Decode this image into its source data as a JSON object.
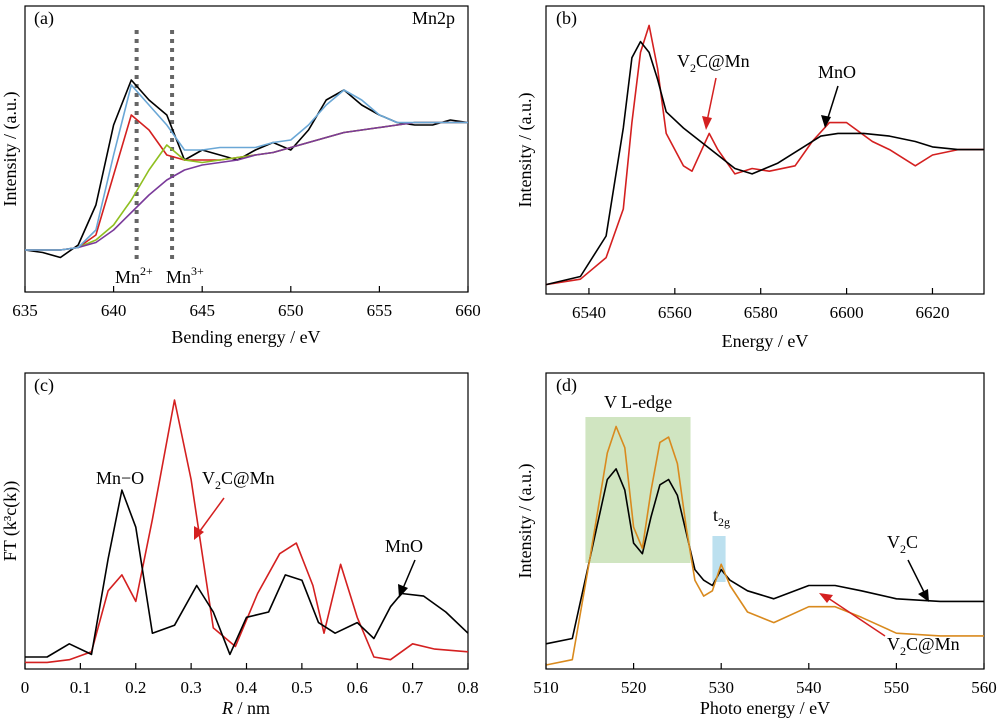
{
  "colors": {
    "black": "#000000",
    "red": "#d42020",
    "green": "#8fbf20",
    "blue": "#3a5fb0",
    "purple": "#7a3a9a",
    "lightblue": "#6aa7d6",
    "orange": "#d98a1e",
    "green_box": "#a9d08e",
    "blue_box": "#9fd3e8",
    "dotted": "#666666"
  },
  "chart_data": [
    {
      "panel": "(a)",
      "type": "line",
      "title": "Mn2p",
      "xlabel": "Bending energy / eV",
      "ylabel": "Intensity / (a.u.)",
      "xlim": [
        635,
        660
      ],
      "ylim": [
        0,
        1
      ],
      "xticks": [
        635,
        640,
        645,
        650,
        655,
        660
      ],
      "yticks_shown": false,
      "annotations": [
        "Mn",
        "2+",
        "Mn",
        "3+"
      ],
      "reference_lines_x": [
        641.3,
        643.3
      ],
      "series": [
        {
          "x": [
            635,
            636,
            637,
            638,
            639,
            640,
            641,
            642,
            643,
            644,
            645,
            646,
            647,
            648,
            649,
            650,
            651,
            652,
            653,
            654,
            655,
            656,
            657,
            658,
            659,
            660
          ],
          "y": [
            0.12,
            0.11,
            0.09,
            0.14,
            0.3,
            0.62,
            0.8,
            0.72,
            0.66,
            0.48,
            0.52,
            0.5,
            0.48,
            0.52,
            0.55,
            0.52,
            0.6,
            0.72,
            0.76,
            0.7,
            0.66,
            0.63,
            0.62,
            0.62,
            0.64,
            0.63
          ]
        },
        {
          "x": [
            635,
            636,
            637,
            638,
            639,
            640,
            641,
            642,
            643,
            644,
            645,
            646,
            647,
            648,
            649,
            650,
            651,
            652,
            653,
            654,
            655,
            656,
            657,
            658,
            659,
            660
          ],
          "y": [
            0.12,
            0.12,
            0.12,
            0.13,
            0.18,
            0.42,
            0.66,
            0.6,
            0.5,
            0.48,
            0.48,
            0.48,
            0.49,
            0.5,
            0.51,
            0.53,
            0.55,
            0.57,
            0.59,
            0.6,
            0.61,
            0.62,
            0.63,
            0.63,
            0.63,
            0.63
          ]
        },
        {
          "x": [
            635,
            636,
            637,
            638,
            639,
            640,
            641,
            642,
            643,
            644,
            645,
            646,
            647,
            648,
            649,
            650,
            651,
            652,
            653,
            654,
            655,
            656,
            657,
            658,
            659,
            660
          ],
          "y": [
            0.12,
            0.12,
            0.12,
            0.13,
            0.16,
            0.22,
            0.32,
            0.44,
            0.54,
            0.48,
            0.47,
            0.48,
            0.49,
            0.5,
            0.51,
            0.53,
            0.55,
            0.57,
            0.59,
            0.6,
            0.61,
            0.62,
            0.63,
            0.63,
            0.63,
            0.63
          ]
        },
        {
          "x": [
            635,
            636,
            637,
            638,
            639,
            640,
            641,
            642,
            643,
            644,
            645,
            646,
            647,
            648,
            649,
            650,
            651,
            652,
            653,
            654,
            655,
            656,
            657,
            658,
            659,
            660
          ],
          "y": [
            0.12,
            0.12,
            0.12,
            0.13,
            0.15,
            0.2,
            0.27,
            0.34,
            0.4,
            0.44,
            0.46,
            0.47,
            0.48,
            0.5,
            0.51,
            0.53,
            0.55,
            0.57,
            0.59,
            0.6,
            0.61,
            0.62,
            0.63,
            0.63,
            0.63,
            0.63
          ]
        },
        {
          "x": [
            635,
            636,
            637,
            638,
            639,
            640,
            641,
            642,
            643,
            644,
            645,
            646,
            647,
            648,
            649,
            650,
            651,
            652,
            653,
            654,
            655,
            656,
            657,
            658,
            659,
            660
          ],
          "y": [
            0.12,
            0.12,
            0.12,
            0.13,
            0.2,
            0.5,
            0.78,
            0.7,
            0.62,
            0.52,
            0.52,
            0.53,
            0.53,
            0.53,
            0.55,
            0.56,
            0.62,
            0.7,
            0.76,
            0.72,
            0.66,
            0.63,
            0.63,
            0.63,
            0.63,
            0.63
          ]
        }
      ]
    },
    {
      "panel": "(b)",
      "type": "line",
      "xlabel": "Energy / eV",
      "ylabel": "Intensity / (a.u.)",
      "xlim": [
        6530,
        6632
      ],
      "ylim": [
        0,
        1
      ],
      "xticks": [
        6540,
        6560,
        6580,
        6600,
        6620
      ],
      "yticks_shown": false,
      "annotations": [
        "V",
        "2",
        "C@Mn",
        "MnO"
      ],
      "series": [
        {
          "name": "V2C@Mn",
          "x": [
            6530,
            6538,
            6544,
            6548,
            6550,
            6552,
            6554,
            6556,
            6558,
            6562,
            6564,
            6568,
            6570,
            6574,
            6578,
            6582,
            6588,
            6592,
            6596,
            6600,
            6606,
            6610,
            6616,
            6620,
            6626,
            6632
          ],
          "y": [
            0.02,
            0.04,
            0.12,
            0.3,
            0.62,
            0.88,
            0.98,
            0.82,
            0.58,
            0.46,
            0.44,
            0.58,
            0.52,
            0.43,
            0.45,
            0.44,
            0.46,
            0.55,
            0.62,
            0.62,
            0.55,
            0.52,
            0.46,
            0.5,
            0.52,
            0.52
          ]
        },
        {
          "name": "MnO",
          "x": [
            6530,
            6538,
            6544,
            6548,
            6550,
            6552,
            6554,
            6556,
            6558,
            6562,
            6566,
            6570,
            6574,
            6578,
            6584,
            6590,
            6594,
            6598,
            6604,
            6610,
            6616,
            6620,
            6626,
            6632
          ],
          "y": [
            0.02,
            0.05,
            0.2,
            0.6,
            0.86,
            0.92,
            0.88,
            0.78,
            0.66,
            0.6,
            0.55,
            0.5,
            0.45,
            0.43,
            0.47,
            0.53,
            0.57,
            0.58,
            0.58,
            0.57,
            0.55,
            0.53,
            0.52,
            0.52
          ]
        }
      ]
    },
    {
      "panel": "(c)",
      "type": "line",
      "xlabel": "R / nm",
      "ylabel": "FT (k³c(k))",
      "xlim": [
        0,
        0.8
      ],
      "ylim": [
        0,
        1
      ],
      "xticks": [
        0,
        0.1,
        0.2,
        0.3,
        0.4,
        0.5,
        0.6,
        0.7,
        0.8
      ],
      "yticks_shown": false,
      "annotations": [
        "Mn−O",
        "V",
        "2",
        "C@Mn",
        "MnO"
      ],
      "series": [
        {
          "name": "V2C@Mn",
          "x": [
            0,
            0.04,
            0.08,
            0.12,
            0.15,
            0.175,
            0.2,
            0.23,
            0.27,
            0.3,
            0.34,
            0.38,
            0.42,
            0.46,
            0.49,
            0.52,
            0.54,
            0.57,
            0.6,
            0.63,
            0.66,
            0.7,
            0.74,
            0.8
          ],
          "y": [
            0.01,
            0.01,
            0.02,
            0.05,
            0.28,
            0.34,
            0.24,
            0.55,
            1.0,
            0.7,
            0.14,
            0.07,
            0.27,
            0.42,
            0.46,
            0.3,
            0.12,
            0.38,
            0.18,
            0.03,
            0.02,
            0.08,
            0.06,
            0.05
          ]
        },
        {
          "name": "MnO",
          "x": [
            0,
            0.04,
            0.08,
            0.12,
            0.15,
            0.175,
            0.2,
            0.23,
            0.27,
            0.31,
            0.34,
            0.37,
            0.4,
            0.44,
            0.47,
            0.5,
            0.53,
            0.56,
            0.6,
            0.63,
            0.66,
            0.68,
            0.72,
            0.76,
            0.8
          ],
          "y": [
            0.03,
            0.03,
            0.08,
            0.04,
            0.4,
            0.66,
            0.52,
            0.12,
            0.15,
            0.3,
            0.2,
            0.04,
            0.18,
            0.2,
            0.34,
            0.32,
            0.16,
            0.12,
            0.16,
            0.1,
            0.22,
            0.27,
            0.26,
            0.2,
            0.12
          ]
        }
      ]
    },
    {
      "panel": "(d)",
      "type": "line",
      "xlabel": "Photo energy / eV",
      "ylabel": "Intensity / (a.u.)",
      "xlim": [
        510,
        560
      ],
      "ylim": [
        0,
        1
      ],
      "xticks": [
        510,
        520,
        530,
        540,
        550,
        560
      ],
      "yticks_shown": false,
      "annotations": [
        "V L-edge",
        "t",
        "2g",
        "V",
        "2",
        "C",
        "V",
        "2",
        "C@Mn"
      ],
      "highlight_boxes_x": [
        [
          514.5,
          526.5
        ],
        [
          529,
          530.5
        ]
      ],
      "series": [
        {
          "name": "V2C",
          "x": [
            510,
            513,
            515,
            517,
            518,
            519,
            520,
            521,
            522,
            523,
            524,
            525,
            526,
            527,
            528,
            529,
            530,
            531,
            533,
            536,
            540,
            543,
            546,
            550,
            555,
            560
          ],
          "y": [
            0.08,
            0.1,
            0.4,
            0.7,
            0.74,
            0.66,
            0.46,
            0.42,
            0.56,
            0.68,
            0.7,
            0.64,
            0.5,
            0.36,
            0.32,
            0.3,
            0.36,
            0.32,
            0.28,
            0.25,
            0.3,
            0.3,
            0.28,
            0.25,
            0.24,
            0.24
          ]
        },
        {
          "name": "V2C@Mn",
          "x": [
            510,
            513,
            515,
            517,
            518,
            519,
            520,
            521,
            522,
            523,
            524,
            525,
            526,
            527,
            528,
            529,
            530,
            531,
            533,
            536,
            540,
            543,
            546,
            550,
            555,
            560
          ],
          "y": [
            0.0,
            0.02,
            0.4,
            0.8,
            0.9,
            0.82,
            0.52,
            0.44,
            0.66,
            0.84,
            0.86,
            0.76,
            0.52,
            0.32,
            0.26,
            0.28,
            0.38,
            0.3,
            0.2,
            0.16,
            0.22,
            0.22,
            0.18,
            0.12,
            0.11,
            0.11
          ]
        }
      ]
    }
  ]
}
